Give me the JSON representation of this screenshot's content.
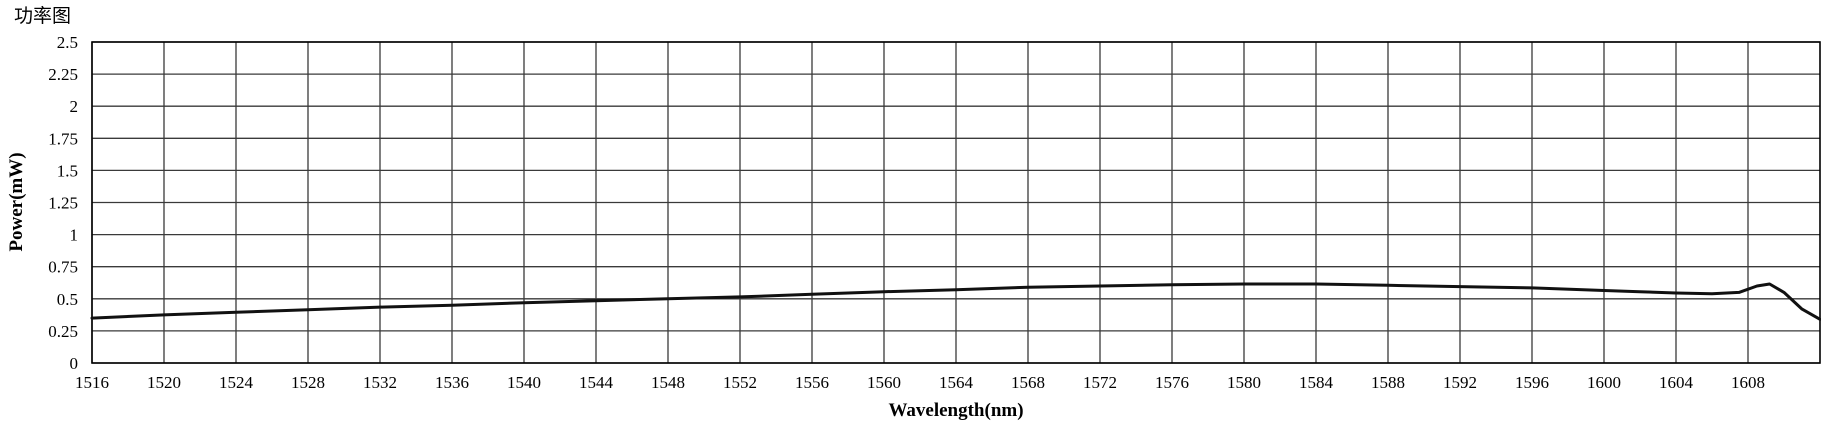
{
  "chart_data": {
    "type": "line",
    "title": "功率图",
    "xlabel": "Wavelength(nm)",
    "ylabel": "Power(mW)",
    "xlim": [
      1516,
      1612
    ],
    "ylim": [
      0,
      2.5
    ],
    "x_ticks": [
      "1516",
      "1520",
      "1524",
      "1528",
      "1532",
      "1536",
      "1540",
      "1544",
      "1548",
      "1552",
      "1556",
      "1560",
      "1564",
      "1568",
      "1572",
      "1576",
      "1580",
      "1584",
      "1588",
      "1592",
      "1596",
      "1600",
      "1604",
      "1608"
    ],
    "y_ticks": [
      "0",
      "0.25",
      "0.5",
      "0.75",
      "1",
      "1.25",
      "1.5",
      "1.75",
      "2",
      "2.25",
      "2.5"
    ],
    "grid": true,
    "series": [
      {
        "color": "#111111",
        "x": [
          1516,
          1520,
          1524,
          1528,
          1532,
          1536,
          1540,
          1544,
          1548,
          1552,
          1556,
          1560,
          1564,
          1568,
          1572,
          1576,
          1580,
          1584,
          1588,
          1592,
          1596,
          1600,
          1602,
          1604,
          1606,
          1607.5,
          1608.5,
          1609.2,
          1610,
          1611,
          1612
        ],
        "y": [
          0.35,
          0.375,
          0.395,
          0.415,
          0.435,
          0.45,
          0.47,
          0.485,
          0.5,
          0.515,
          0.535,
          0.555,
          0.57,
          0.59,
          0.6,
          0.61,
          0.615,
          0.615,
          0.605,
          0.595,
          0.585,
          0.565,
          0.555,
          0.545,
          0.54,
          0.55,
          0.6,
          0.615,
          0.55,
          0.42,
          0.34
        ]
      }
    ]
  }
}
